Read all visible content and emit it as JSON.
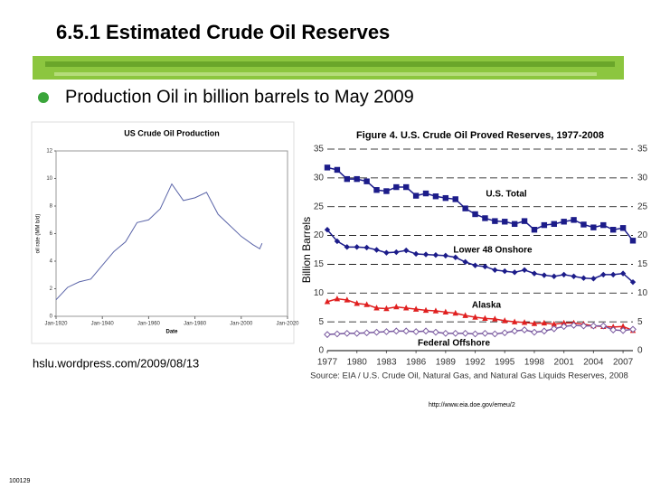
{
  "header": {
    "title": "6.5.1 Estimated Crude Oil Reserves",
    "bullet": "Production Oil in billion barrels to May 2009"
  },
  "captions": {
    "left_source": "hslu.wordpress.com/2009/08/13",
    "url": "http://www.eia.doe.gov/emeu/2",
    "footer": "100129"
  },
  "chart_data": [
    {
      "type": "line",
      "title": "US Crude Oil Production",
      "xlabel": "Date",
      "ylabel": "oil rate (MM b/d)",
      "x": [
        1920,
        1925,
        1930,
        1935,
        1940,
        1945,
        1950,
        1955,
        1960,
        1965,
        1970,
        1975,
        1980,
        1985,
        1990,
        1995,
        2000,
        2005,
        2008,
        2009
      ],
      "values": [
        1.2,
        2.1,
        2.5,
        2.7,
        3.7,
        4.7,
        5.4,
        6.8,
        7.0,
        7.8,
        9.6,
        8.4,
        8.6,
        9.0,
        7.4,
        6.6,
        5.8,
        5.2,
        4.9,
        5.3
      ],
      "color": "#5a64a8",
      "xlim": [
        1920,
        2020
      ],
      "xticks": [
        {
          "value": 1920,
          "label": "Jan-1920"
        },
        {
          "value": 1940,
          "label": "Jan-1940"
        },
        {
          "value": 1960,
          "label": "Jan-1960"
        },
        {
          "value": 1980,
          "label": "Jan-1980"
        },
        {
          "value": 2000,
          "label": "Jan-2000"
        },
        {
          "value": 2020,
          "label": "Jan-2020"
        }
      ],
      "ylim": [
        0,
        12
      ],
      "yticks": [
        0,
        2,
        4,
        6,
        8,
        10,
        12
      ],
      "grid": false
    },
    {
      "type": "line",
      "title": "Figure 4. U.S. Crude Oil Proved Reserves, 1977-2008",
      "ylabel": "Billion Barrels",
      "source": "Source: EIA / U.S. Crude Oil, Natural Gas, and Natural Gas Liquids Reserves, 2008",
      "x": [
        1977,
        1978,
        1979,
        1980,
        1981,
        1982,
        1983,
        1984,
        1985,
        1986,
        1987,
        1988,
        1989,
        1990,
        1991,
        1992,
        1993,
        1994,
        1995,
        1996,
        1997,
        1998,
        1999,
        2000,
        2001,
        2002,
        2003,
        2004,
        2005,
        2006,
        2007,
        2008
      ],
      "series": [
        {
          "name": "U.S. Total",
          "color": "#1c1c8a",
          "marker": "square",
          "values": [
            31.8,
            31.4,
            29.8,
            29.8,
            29.4,
            27.9,
            27.7,
            28.4,
            28.4,
            26.9,
            27.3,
            26.8,
            26.5,
            26.3,
            24.7,
            23.7,
            23.0,
            22.5,
            22.4,
            22.0,
            22.5,
            21.0,
            21.8,
            22.0,
            22.4,
            22.7,
            21.9,
            21.4,
            21.8,
            21.0,
            21.3,
            19.1
          ]
        },
        {
          "name": "Lower 48 Onshore",
          "color": "#1c1c8a",
          "marker": "diamond",
          "values": [
            21.0,
            19.0,
            18.0,
            18.0,
            17.9,
            17.5,
            17.0,
            17.1,
            17.4,
            16.8,
            16.7,
            16.6,
            16.5,
            16.2,
            15.4,
            14.8,
            14.6,
            14.0,
            13.8,
            13.6,
            14.0,
            13.4,
            13.1,
            12.9,
            13.2,
            12.9,
            12.6,
            12.5,
            13.2,
            13.2,
            13.4,
            11.9
          ]
        },
        {
          "name": "Alaska",
          "color": "#e02020",
          "marker": "triangle",
          "values": [
            8.5,
            9.0,
            8.8,
            8.2,
            8.0,
            7.4,
            7.3,
            7.6,
            7.4,
            7.2,
            7.0,
            6.9,
            6.7,
            6.5,
            6.1,
            5.8,
            5.6,
            5.5,
            5.2,
            5.0,
            4.9,
            4.7,
            4.8,
            4.6,
            4.8,
            4.8,
            4.6,
            4.3,
            4.2,
            4.1,
            4.2,
            3.5
          ]
        },
        {
          "name": "Federal Offshore",
          "color": "#7a5aa0",
          "marker": "open-diamond",
          "values": [
            2.8,
            2.9,
            3.0,
            3.0,
            3.1,
            3.2,
            3.3,
            3.4,
            3.4,
            3.3,
            3.4,
            3.2,
            3.0,
            3.0,
            3.0,
            2.9,
            3.0,
            2.9,
            3.1,
            3.4,
            3.6,
            3.2,
            3.4,
            3.8,
            4.2,
            4.4,
            4.3,
            4.3,
            4.3,
            3.6,
            3.5,
            3.7
          ]
        }
      ],
      "xlim": [
        1977,
        2008
      ],
      "xticks": [
        1977,
        1980,
        1983,
        1986,
        1989,
        1992,
        1995,
        1998,
        2001,
        2004,
        2007
      ],
      "ylim": [
        0,
        35
      ],
      "yticks": [
        0,
        5,
        10,
        15,
        20,
        25,
        30,
        35
      ],
      "grid": true
    }
  ]
}
